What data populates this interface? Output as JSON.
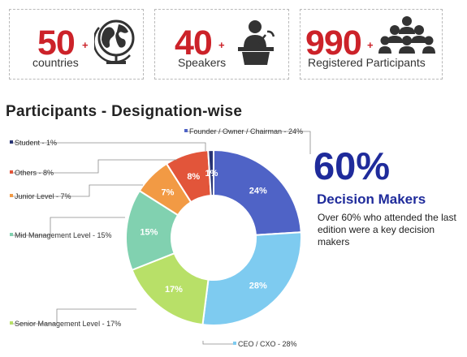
{
  "stats": [
    {
      "number": "50",
      "plus": "+",
      "label": "countries",
      "icon": "globe-icon"
    },
    {
      "number": "40",
      "plus": "+",
      "label": "Speakers",
      "icon": "speaker-podium-icon"
    },
    {
      "number": "990",
      "plus": "+",
      "label": "Registered Participants",
      "icon": "people-group-icon"
    }
  ],
  "colors": {
    "accent_red": "#cc2229",
    "navy": "#1f2b9b",
    "icon_dark": "#333333"
  },
  "section_title": "Participants - Designation-wise",
  "highlight": {
    "percent": "60%",
    "label": "Decision Makers",
    "description": "Over 60% who attended the last edition were a key decision makers"
  },
  "chart_data": {
    "type": "pie",
    "donut": true,
    "title": "Participants - Designation-wise",
    "series": [
      {
        "label": "Founder / Owner / Chairman - 24%",
        "value": 24,
        "data_label": "24%",
        "color": "#4f63c6"
      },
      {
        "label": "CEO / CXO - 28%",
        "value": 28,
        "data_label": "28%",
        "color": "#7ecbf0"
      },
      {
        "label": "Senior  Management Level - 17%",
        "value": 17,
        "data_label": "17%",
        "color": "#b8e068"
      },
      {
        "label": "Mid Management Level - 15%",
        "value": 15,
        "data_label": "15%",
        "color": "#81d1b0"
      },
      {
        "label": "Junior Level - 7%",
        "value": 7,
        "data_label": "7%",
        "color": "#f29a44"
      },
      {
        "label": "Others - 8%",
        "value": 8,
        "data_label": "8%",
        "color": "#e2553a"
      },
      {
        "label": "Student - 1%",
        "value": 1,
        "data_label": "1%",
        "color": "#283474"
      }
    ]
  }
}
